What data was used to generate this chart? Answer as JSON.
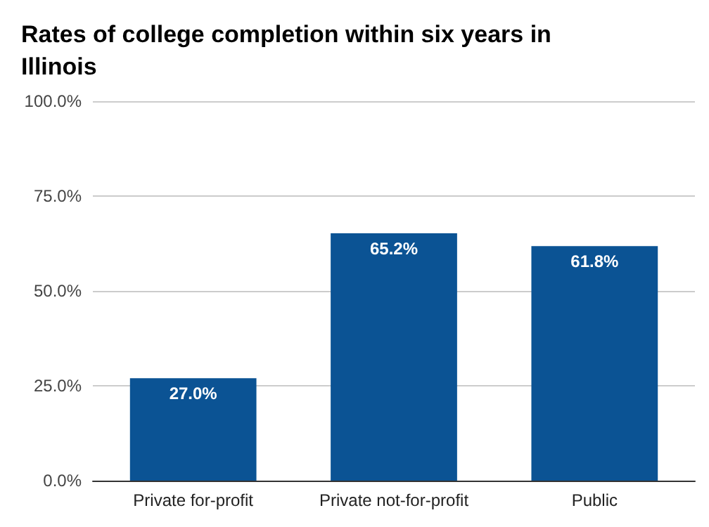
{
  "chart_data": {
    "type": "bar",
    "title": "Rates of college completion within six years in Illinois",
    "categories": [
      "Private for-profit",
      "Private not-for-profit",
      "Public"
    ],
    "values": [
      27.0,
      65.2,
      61.8
    ],
    "color": "#0b5394",
    "value_labels": [
      "27.0%",
      "65.2%",
      "61.8%"
    ],
    "ylim": [
      0,
      100
    ],
    "yticks": [
      {
        "value": 0,
        "label": "0.0%"
      },
      {
        "value": 25,
        "label": "25.0%"
      },
      {
        "value": 50,
        "label": "50.0%"
      },
      {
        "value": 75,
        "label": "75.0%"
      },
      {
        "value": 100,
        "label": "100.0%"
      }
    ],
    "grid": "y"
  }
}
